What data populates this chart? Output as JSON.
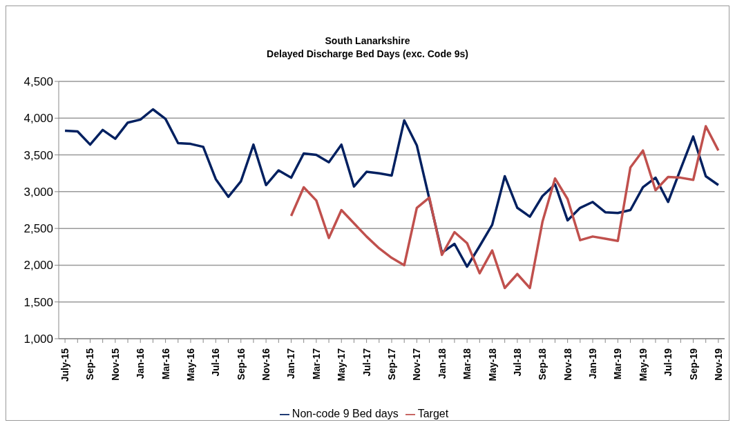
{
  "chart_data": {
    "type": "line",
    "title": "South Lanarkshire",
    "subtitle": "Delayed Discharge Bed Days (exc. Code 9s)",
    "categories": [
      "July-15",
      null,
      "Sep-15",
      null,
      "Nov-15",
      null,
      "Jan-16",
      null,
      "Mar-16",
      null,
      "May-16",
      null,
      "Jul-16",
      null,
      "Sep-16",
      null,
      "Nov-16",
      null,
      "Jan-17",
      null,
      "Mar-17",
      null,
      "May-17",
      null,
      "Jul-17",
      null,
      "Sep-17",
      null,
      "Nov-17",
      null,
      "Jan-18",
      null,
      "Mar-18",
      null,
      "May-18",
      null,
      "Jul-18",
      null,
      "Sep-18",
      null,
      "Nov-18",
      null,
      "Jan-19",
      null,
      "Mar-19",
      null,
      "May-19",
      null,
      "Jul-19",
      null,
      "Sep-19",
      null,
      "Nov-19"
    ],
    "series": [
      {
        "name": "Non-code 9 Bed days",
        "color": "#002060",
        "values": [
          3830,
          3820,
          3640,
          3840,
          3720,
          3940,
          3980,
          4120,
          3990,
          3660,
          3650,
          3610,
          3170,
          2930,
          3140,
          3640,
          3090,
          3290,
          3190,
          3520,
          3500,
          3400,
          3640,
          3070,
          3270,
          3250,
          3220,
          3970,
          3630,
          2900,
          2170,
          2290,
          1980,
          2260,
          2550,
          3210,
          2780,
          2660,
          2940,
          3100,
          2610,
          2780,
          2860,
          2720,
          2710,
          2750,
          3060,
          3190,
          2860,
          3310,
          3750,
          3210,
          3090
        ]
      },
      {
        "name": "Target",
        "color": "#c0504d",
        "values": [
          null,
          null,
          null,
          null,
          null,
          null,
          null,
          null,
          null,
          null,
          null,
          null,
          null,
          null,
          null,
          null,
          null,
          null,
          2670,
          3060,
          2880,
          2370,
          2750,
          2570,
          2390,
          2230,
          2100,
          2000,
          2780,
          2920,
          2140,
          2450,
          2300,
          1890,
          2200,
          1690,
          1880,
          1690,
          2590,
          3180,
          2900,
          2340,
          2390,
          2360,
          2330,
          3330,
          3560,
          3020,
          3200,
          3190,
          3160,
          3890,
          3560
        ]
      }
    ],
    "ylim": [
      1000,
      4500
    ],
    "yticks": [
      {
        "value": 1000,
        "label": "1,000"
      },
      {
        "value": 1500,
        "label": "1,500"
      },
      {
        "value": 2000,
        "label": "2,000"
      },
      {
        "value": 2500,
        "label": "2,500"
      },
      {
        "value": 3000,
        "label": "3,000"
      },
      {
        "value": 3500,
        "label": "3,500"
      },
      {
        "value": 4000,
        "label": "4,000"
      },
      {
        "value": 4500,
        "label": "4,500"
      }
    ],
    "grid": "y",
    "legend": "bottom",
    "marker": "none",
    "line_style": "solid"
  }
}
